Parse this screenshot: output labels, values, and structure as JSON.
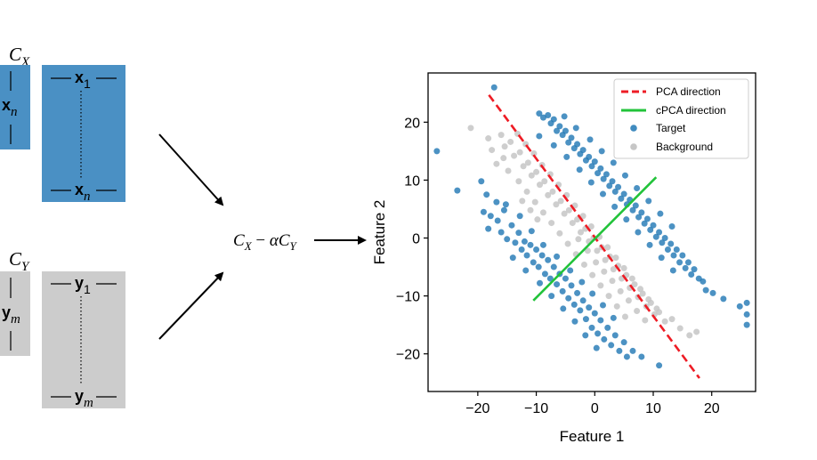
{
  "diagram": {
    "target_cov_label": "C",
    "target_cov_sub": "X",
    "background_cov_label": "C",
    "background_cov_sub": "Y",
    "target_vec_first": "x",
    "target_vec_first_sub": "1",
    "target_vec_last": "x",
    "target_vec_last_sub": "n",
    "target_vec_side": "x",
    "target_vec_side_sub": "n",
    "bg_vec_first": "y",
    "bg_vec_first_sub": "1",
    "bg_vec_last": "y",
    "bg_vec_last_sub": "m",
    "bg_vec_side": "y",
    "bg_vec_side_sub": "m",
    "formula": {
      "c1": "C",
      "s1": "X",
      "minus": " − ",
      "alpha": "α",
      "c2": "C",
      "s2": "Y"
    },
    "colors": {
      "target_box": "#4a90c4",
      "background_box": "#cccccc"
    }
  },
  "chart_data": {
    "type": "scatter",
    "xlabel": "Feature 1",
    "ylabel": "Feature 2",
    "xlim": [
      -28.5,
      27.5
    ],
    "ylim": [
      -26.5,
      28.5
    ],
    "xticks": [
      -20,
      -10,
      0,
      10,
      20
    ],
    "yticks": [
      -20,
      -10,
      0,
      10,
      20
    ],
    "xtick_labels": [
      "−20",
      "−10",
      "0",
      "10",
      "20"
    ],
    "ytick_labels": [
      "−20",
      "−10",
      "0",
      "10",
      "20"
    ],
    "legend_position": "top-right",
    "lines": [
      {
        "name": "PCA direction",
        "style": "dashed",
        "color": "#ee1c25",
        "x": [
          -18.1,
          17.9
        ],
        "y": [
          24.7,
          -24.2
        ]
      },
      {
        "name": "cPCA direction",
        "style": "solid",
        "color": "#22c33a",
        "x": [
          -10.5,
          10.5
        ],
        "y": [
          -10.8,
          10.5
        ]
      }
    ],
    "series": [
      {
        "name": "Target",
        "color": "#1f77b4",
        "points": [
          [
            -17.2,
            26
          ],
          [
            -27,
            15
          ],
          [
            -23.5,
            8.2
          ],
          [
            -19.4,
            9.8
          ],
          [
            -18.5,
            7.5
          ],
          [
            -19.0,
            4.5
          ],
          [
            -17.8,
            3.8
          ],
          [
            -18.2,
            1.6
          ],
          [
            -16.6,
            3.0
          ],
          [
            -16.0,
            1.0
          ],
          [
            -15.5,
            4.8
          ],
          [
            -15.0,
            -0.2
          ],
          [
            -14.2,
            2.2
          ],
          [
            -13.6,
            -0.8
          ],
          [
            -13.0,
            0.9
          ],
          [
            -12.5,
            -2.0
          ],
          [
            -12.0,
            -0.6
          ],
          [
            -11.6,
            -3.0
          ],
          [
            -11.0,
            -1.2
          ],
          [
            -10.5,
            -4.2
          ],
          [
            -10.0,
            -2.0
          ],
          [
            -9.6,
            -5.0
          ],
          [
            -9.0,
            -3.0
          ],
          [
            -8.5,
            -6.2
          ],
          [
            -8.0,
            -3.8
          ],
          [
            -7.6,
            -7.0
          ],
          [
            -7.0,
            -5.0
          ],
          [
            -6.5,
            -8.0
          ],
          [
            -6.0,
            -6.2
          ],
          [
            -5.5,
            -9.2
          ],
          [
            -5.0,
            -7.0
          ],
          [
            -4.5,
            -10.4
          ],
          [
            -4.0,
            -8.2
          ],
          [
            -3.5,
            -11.5
          ],
          [
            -3.0,
            -9.5
          ],
          [
            -2.5,
            -12.5
          ],
          [
            -2.0,
            -10.8
          ],
          [
            -1.5,
            -14.0
          ],
          [
            -1.0,
            -12.0
          ],
          [
            -0.5,
            -15.5
          ],
          [
            0.0,
            -13.0
          ],
          [
            0.5,
            -16.5
          ],
          [
            1.0,
            -14.2
          ],
          [
            1.6,
            -17.5
          ],
          [
            2.2,
            -15.5
          ],
          [
            2.8,
            -18.5
          ],
          [
            3.5,
            -16.8
          ],
          [
            4.2,
            -19.5
          ],
          [
            5.0,
            -18.0
          ],
          [
            5.5,
            -20.5
          ],
          [
            6.5,
            -19.5
          ],
          [
            8.0,
            -20.5
          ],
          [
            11,
            -22.0
          ],
          [
            -15.2,
            5.8
          ],
          [
            -16.8,
            6.2
          ],
          [
            -12.8,
            3.8
          ],
          [
            -10.8,
            1.2
          ],
          [
            -8.8,
            -1.2
          ],
          [
            -6.5,
            -3.2
          ],
          [
            -4.2,
            -5.6
          ],
          [
            -2.2,
            -7.6
          ],
          [
            -0.4,
            -9.6
          ],
          [
            1.4,
            -11.6
          ],
          [
            3.2,
            -13.8
          ],
          [
            -14.0,
            -3.4
          ],
          [
            -11.8,
            -5.6
          ],
          [
            -9.4,
            -7.8
          ],
          [
            -7.4,
            -10.0
          ],
          [
            -5.4,
            -12.2
          ],
          [
            -3.4,
            -14.4
          ],
          [
            -1.6,
            -16.8
          ],
          [
            0.3,
            -19.0
          ],
          [
            -9.5,
            21.5
          ],
          [
            -8.8,
            20.8
          ],
          [
            -8.0,
            21.2
          ],
          [
            -7.5,
            19.8
          ],
          [
            -7.0,
            20.5
          ],
          [
            -6.5,
            18.5
          ],
          [
            -6.0,
            19.3
          ],
          [
            -5.5,
            17.8
          ],
          [
            -5.0,
            18.5
          ],
          [
            -4.5,
            16.5
          ],
          [
            -4.0,
            17.3
          ],
          [
            -3.5,
            15.5
          ],
          [
            -3.0,
            16.2
          ],
          [
            -2.5,
            14.5
          ],
          [
            -2.0,
            15.2
          ],
          [
            -1.5,
            13.4
          ],
          [
            -1.0,
            14.0
          ],
          [
            -0.5,
            12.4
          ],
          [
            0.0,
            13.2
          ],
          [
            0.5,
            11.2
          ],
          [
            1.0,
            12.0
          ],
          [
            1.5,
            10.2
          ],
          [
            2.0,
            11.0
          ],
          [
            2.5,
            9.0
          ],
          [
            3.0,
            9.8
          ],
          [
            3.5,
            8.0
          ],
          [
            4.0,
            8.8
          ],
          [
            4.5,
            6.8
          ],
          [
            5.0,
            7.6
          ],
          [
            5.5,
            5.8
          ],
          [
            6.0,
            6.6
          ],
          [
            6.5,
            4.8
          ],
          [
            7.0,
            5.6
          ],
          [
            7.5,
            3.6
          ],
          [
            8.0,
            4.4
          ],
          [
            8.5,
            2.5
          ],
          [
            9.0,
            3.3
          ],
          [
            9.5,
            1.4
          ],
          [
            10.0,
            2.2
          ],
          [
            10.5,
            0.2
          ],
          [
            11.0,
            1.0
          ],
          [
            11.5,
            -0.8
          ],
          [
            12.0,
            0.0
          ],
          [
            12.5,
            -2.0
          ],
          [
            13.0,
            -1.0
          ],
          [
            13.5,
            -3.0
          ],
          [
            14.0,
            -2.0
          ],
          [
            14.5,
            -4.2
          ],
          [
            15.0,
            -3.0
          ],
          [
            15.5,
            -5.2
          ],
          [
            16.0,
            -4.2
          ],
          [
            16.5,
            -6.3
          ],
          [
            17.0,
            -5.4
          ],
          [
            17.8,
            -7.0
          ],
          [
            18.5,
            -7.5
          ],
          [
            19.0,
            -9.0
          ],
          [
            20.2,
            -9.5
          ],
          [
            22,
            -10.5
          ],
          [
            24.8,
            -11.8
          ],
          [
            26,
            -11.2
          ],
          [
            26,
            -13.2
          ],
          [
            26,
            -15.0
          ],
          [
            -9.5,
            17.6
          ],
          [
            -7.0,
            16.0
          ],
          [
            -4.8,
            14.0
          ],
          [
            -2.6,
            11.8
          ],
          [
            -0.6,
            9.6
          ],
          [
            1.4,
            7.6
          ],
          [
            3.4,
            5.4
          ],
          [
            5.4,
            3.2
          ],
          [
            7.4,
            1.0
          ],
          [
            9.4,
            -1.2
          ],
          [
            11.4,
            -3.4
          ],
          [
            13.4,
            -5.6
          ],
          [
            -5.2,
            21.0
          ],
          [
            -3.2,
            19.0
          ],
          [
            -0.8,
            17.0
          ],
          [
            1.2,
            15.0
          ],
          [
            3.2,
            13.0
          ],
          [
            5.2,
            10.8
          ],
          [
            7.2,
            8.6
          ],
          [
            9.2,
            6.4
          ],
          [
            11.2,
            4.2
          ],
          [
            13.2,
            2.0
          ]
        ]
      },
      {
        "name": "Background",
        "color": "#c6c6c6",
        "points": [
          [
            -21.2,
            19.0
          ],
          [
            -18.2,
            17.2
          ],
          [
            -16.0,
            17.8
          ],
          [
            -15.4,
            15.8
          ],
          [
            -14.4,
            16.6
          ],
          [
            -13.8,
            14.2
          ],
          [
            -12.8,
            14.8
          ],
          [
            -12.2,
            12.4
          ],
          [
            -11.4,
            13.0
          ],
          [
            -10.8,
            10.8
          ],
          [
            -10.0,
            11.4
          ],
          [
            -9.4,
            9.2
          ],
          [
            -8.6,
            9.8
          ],
          [
            -8.0,
            7.4
          ],
          [
            -7.2,
            8.0
          ],
          [
            -6.6,
            5.8
          ],
          [
            -5.8,
            6.4
          ],
          [
            -5.2,
            4.2
          ],
          [
            -4.4,
            4.8
          ],
          [
            -3.8,
            2.6
          ],
          [
            -3.0,
            3.2
          ],
          [
            -2.4,
            1.0
          ],
          [
            -1.6,
            1.6
          ],
          [
            -1.0,
            -0.6
          ],
          [
            -0.2,
            0.0
          ],
          [
            0.4,
            -2.2
          ],
          [
            1.2,
            -1.6
          ],
          [
            1.8,
            -3.8
          ],
          [
            2.6,
            -3.2
          ],
          [
            3.2,
            -5.4
          ],
          [
            4.0,
            -4.8
          ],
          [
            4.6,
            -7.0
          ],
          [
            5.4,
            -6.4
          ],
          [
            6.0,
            -8.6
          ],
          [
            6.8,
            -8.0
          ],
          [
            7.4,
            -10.2
          ],
          [
            8.2,
            -9.6
          ],
          [
            8.8,
            -11.8
          ],
          [
            9.6,
            -11.2
          ],
          [
            10.2,
            -13.2
          ],
          [
            11.0,
            -12.8
          ],
          [
            12.0,
            -14.4
          ],
          [
            13.2,
            -14.0
          ],
          [
            14.6,
            -15.6
          ],
          [
            16.2,
            -16.8
          ],
          [
            17.4,
            -16.2
          ],
          [
            -13.2,
            18.0
          ],
          [
            -11.8,
            16.2
          ],
          [
            -10.4,
            14.6
          ],
          [
            -9.0,
            12.6
          ],
          [
            -7.6,
            11.0
          ],
          [
            -6.2,
            9.2
          ],
          [
            -4.8,
            7.4
          ],
          [
            -3.4,
            5.6
          ],
          [
            -2.0,
            3.8
          ],
          [
            -0.6,
            2.0
          ],
          [
            0.8,
            0.2
          ],
          [
            2.2,
            -1.6
          ],
          [
            3.6,
            -3.4
          ],
          [
            5.0,
            -5.2
          ],
          [
            6.4,
            -7.0
          ],
          [
            7.8,
            -8.8
          ],
          [
            9.2,
            -10.6
          ],
          [
            10.6,
            -12.2
          ],
          [
            -16.8,
            12.8
          ],
          [
            -14.8,
            11.6
          ],
          [
            -13.0,
            9.8
          ],
          [
            -11.6,
            8.0
          ],
          [
            -10.2,
            6.2
          ],
          [
            -8.8,
            4.4
          ],
          [
            -7.4,
            2.6
          ],
          [
            -6.0,
            0.8
          ],
          [
            -4.6,
            -1.0
          ],
          [
            -3.2,
            -2.8
          ],
          [
            -1.8,
            -4.6
          ],
          [
            -0.4,
            -6.4
          ],
          [
            1.0,
            -8.2
          ],
          [
            2.4,
            -10.0
          ],
          [
            3.8,
            -11.8
          ],
          [
            5.2,
            -13.6
          ],
          [
            -17.6,
            15.2
          ],
          [
            -15.6,
            13.8
          ],
          [
            -2.8,
            -0.2
          ],
          [
            -1.2,
            -2.2
          ],
          [
            0.2,
            -4.2
          ],
          [
            1.6,
            -5.8
          ],
          [
            3.0,
            -7.4
          ],
          [
            4.4,
            -9.2
          ],
          [
            5.8,
            -10.8
          ],
          [
            7.2,
            -12.6
          ],
          [
            8.6,
            -14.2
          ],
          [
            -9.8,
            3.2
          ],
          [
            -11.0,
            4.8
          ],
          [
            -12.4,
            6.4
          ]
        ]
      }
    ]
  }
}
